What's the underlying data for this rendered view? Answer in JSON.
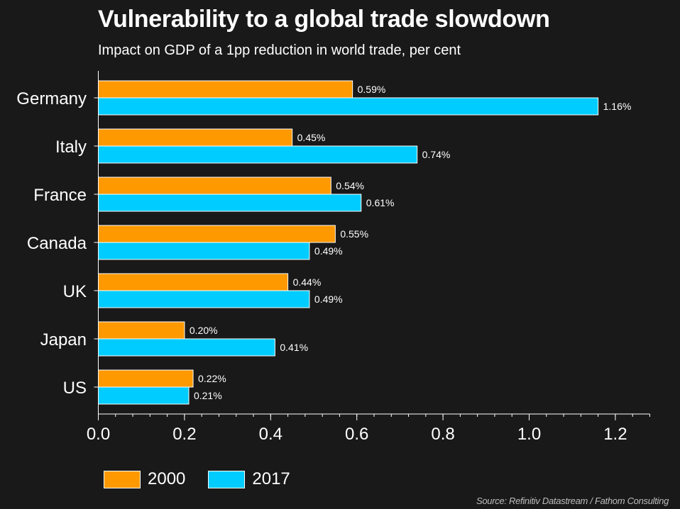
{
  "title": "Vulnerability to a global trade slowdown",
  "subtitle": "Impact on GDP of a 1pp reduction in world trade, per cent",
  "source": "Source: Refinitiv Datastream / Fathom Consulting",
  "colors": {
    "background": "#191919",
    "s2000": "#FF9900",
    "s2017": "#00CCFF"
  },
  "chart_data": {
    "type": "bar",
    "orientation": "horizontal",
    "title": "Vulnerability to a global trade slowdown",
    "subtitle": "Impact on GDP of a 1pp reduction in world trade, per cent",
    "categories": [
      "Germany",
      "Italy",
      "France",
      "Canada",
      "UK",
      "Japan",
      "US"
    ],
    "series": [
      {
        "name": "2000",
        "color": "#FF9900",
        "values": [
          0.59,
          0.45,
          0.54,
          0.55,
          0.44,
          0.2,
          0.22
        ],
        "labels": [
          "0.59%",
          "0.45%",
          "0.54%",
          "0.55%",
          "0.44%",
          "0.20%",
          "0.22%"
        ]
      },
      {
        "name": "2017",
        "color": "#00CCFF",
        "values": [
          1.16,
          0.74,
          0.61,
          0.49,
          0.49,
          0.41,
          0.21
        ],
        "labels": [
          "1.16%",
          "0.74%",
          "0.61%",
          "0.49%",
          "0.49%",
          "0.41%",
          "0.21%"
        ]
      }
    ],
    "xlim": [
      0,
      1.28
    ],
    "xticks": [
      0.0,
      0.2,
      0.4,
      0.6,
      0.8,
      1.0,
      1.2
    ],
    "xtick_labels": [
      "0.0",
      "0.2",
      "0.4",
      "0.6",
      "0.8",
      "1.0",
      "1.2"
    ],
    "minor_tick_step": 0.04,
    "xlabel": "",
    "ylabel": "",
    "grid": false,
    "legend": {
      "placement": "bottom-left",
      "entries": [
        "2000",
        "2017"
      ]
    }
  }
}
